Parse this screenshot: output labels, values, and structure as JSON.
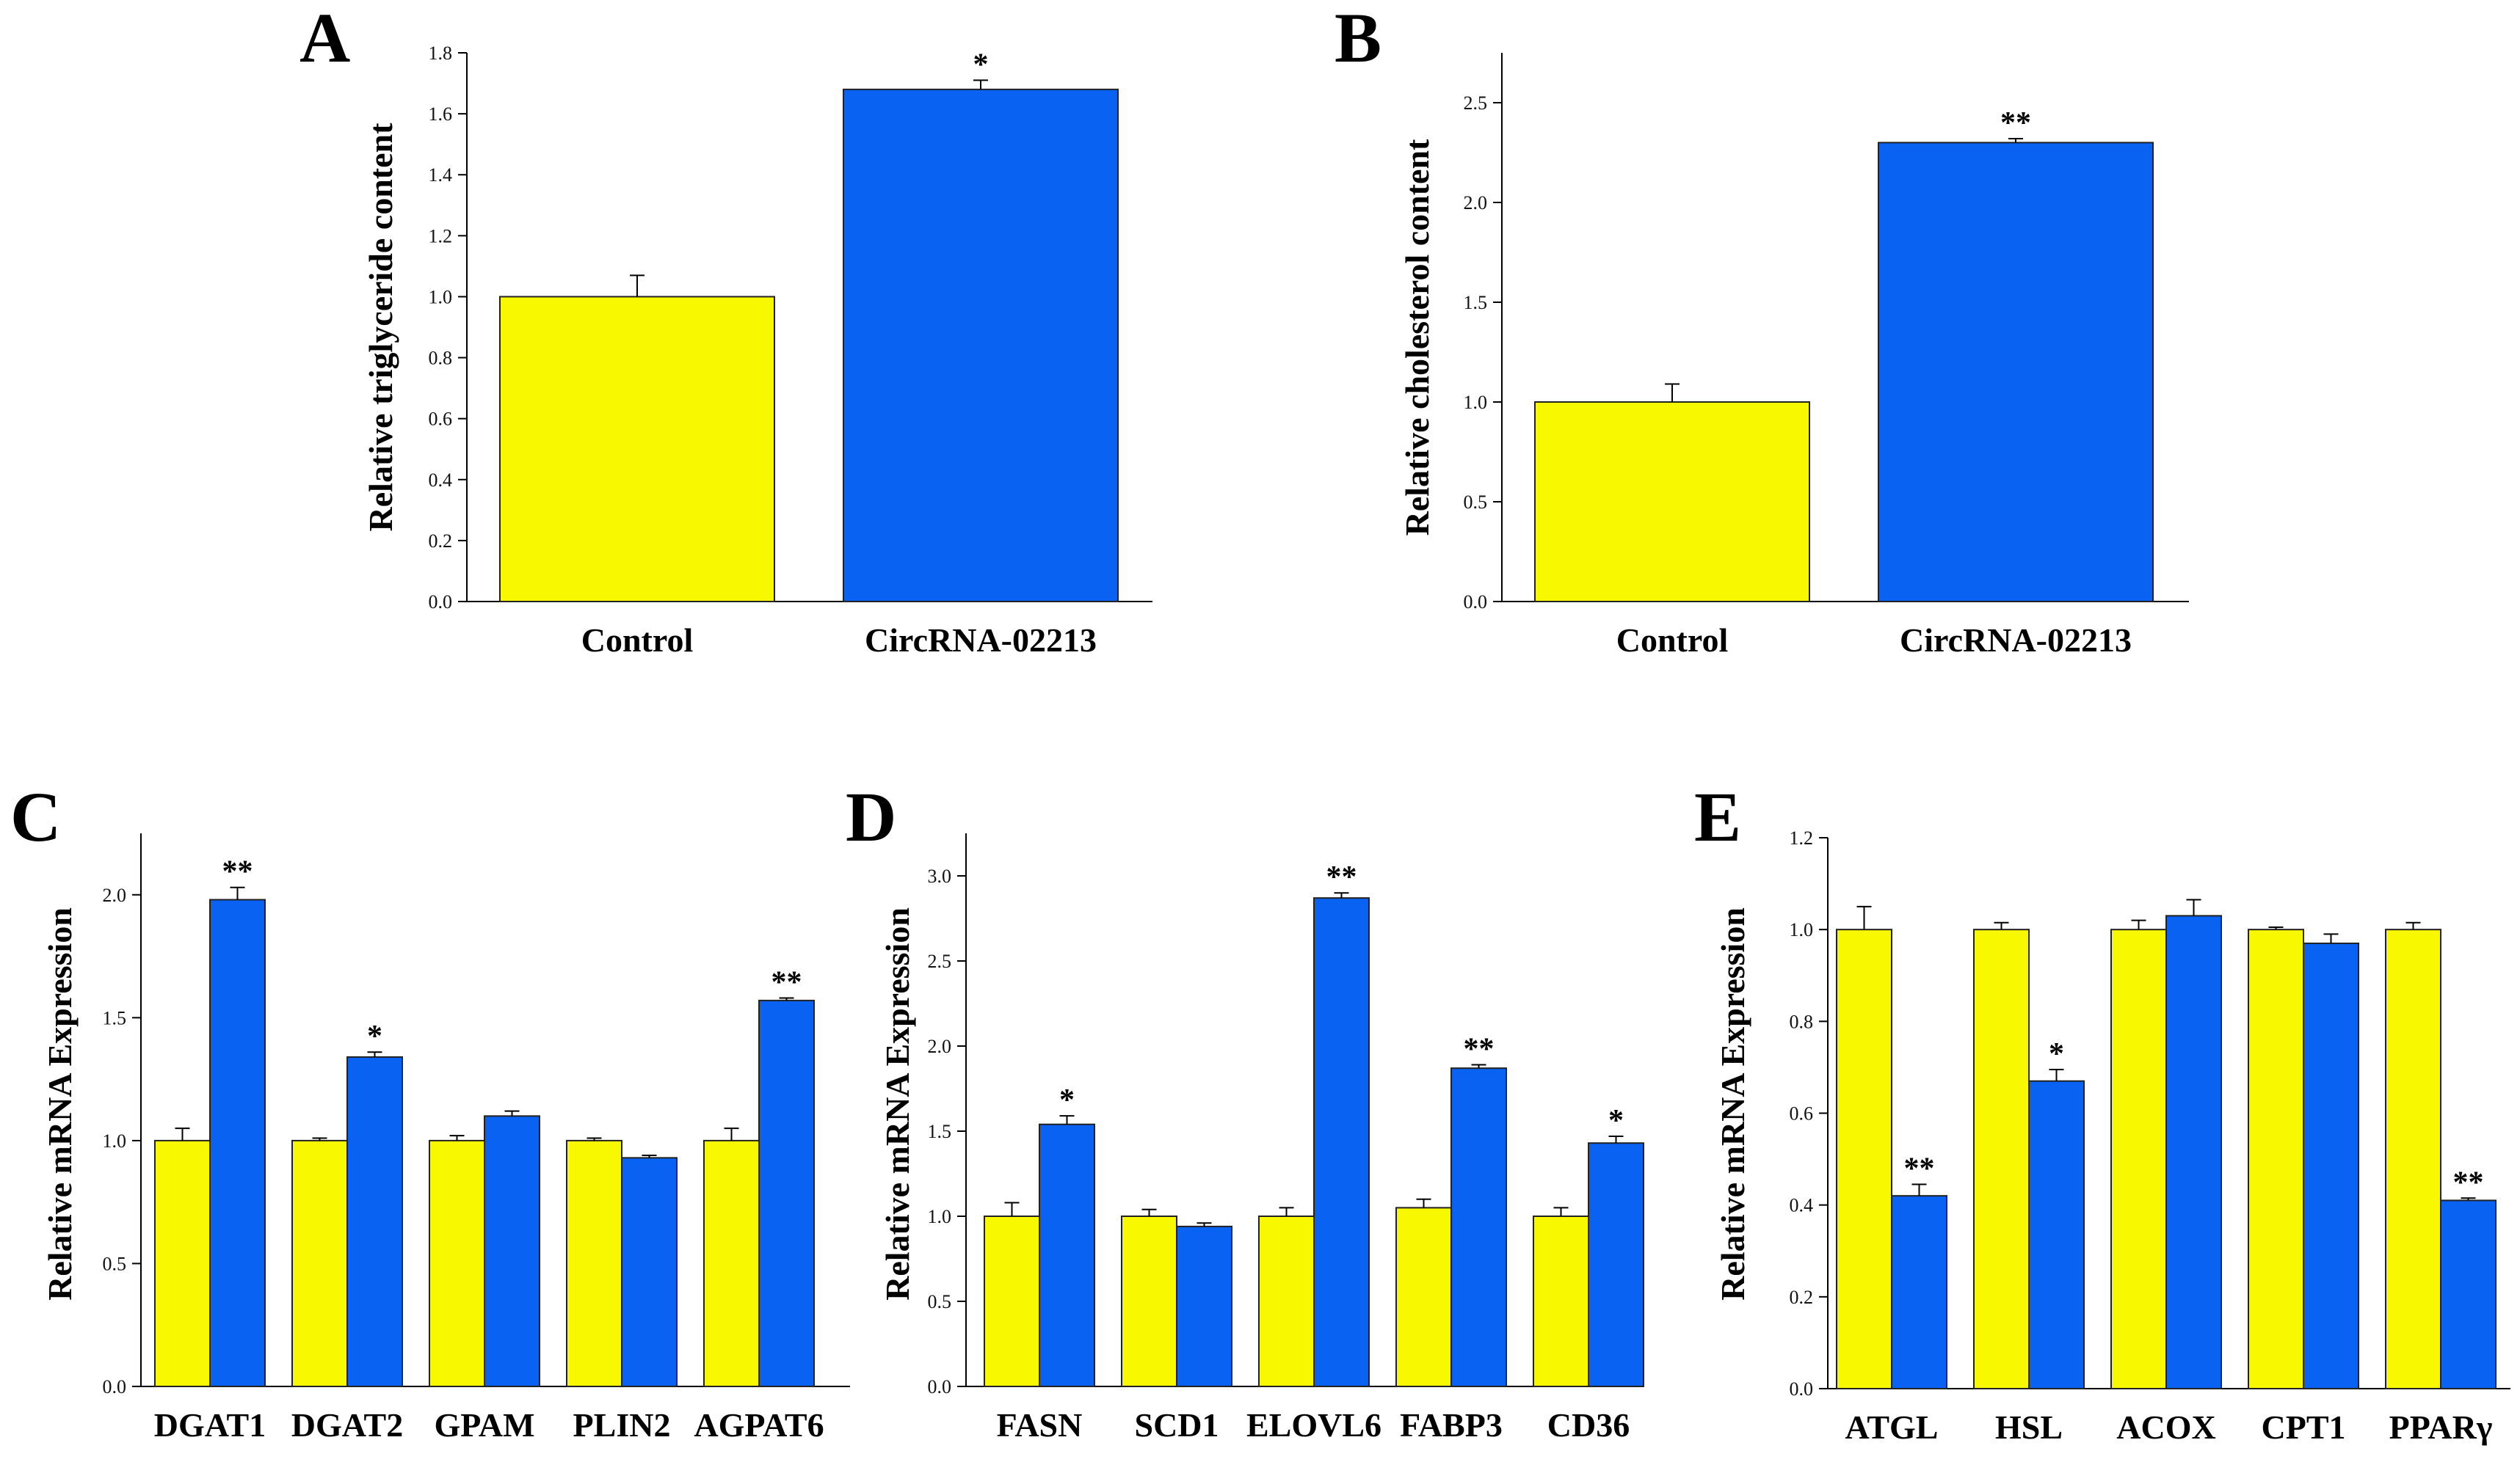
{
  "colors": {
    "control": "#f8f800",
    "treatment": "#0a62f2",
    "edge": "#222222"
  },
  "chart_data": [
    {
      "panel": "A",
      "type": "bar",
      "ylabel": "Relative triglyceride content",
      "categories": [
        "Control",
        "CircRNA-02213"
      ],
      "values": [
        1.0,
        1.68
      ],
      "errors": [
        0.07,
        0.03
      ],
      "significance": [
        "",
        "*"
      ],
      "ylim": [
        0,
        1.8
      ],
      "ytick_step": 0.2,
      "ytick_decimals": 1
    },
    {
      "panel": "B",
      "type": "bar",
      "ylabel": "Relative cholesterol content",
      "categories": [
        "Control",
        "CircRNA-02213"
      ],
      "values": [
        1.0,
        2.3
      ],
      "errors": [
        0.09,
        0.02
      ],
      "significance": [
        "",
        "**"
      ],
      "ylim": [
        0,
        2.75
      ],
      "ytick_step": 0.5,
      "ytick_decimals": 1
    },
    {
      "panel": "C",
      "type": "grouped-bar",
      "ylabel": "Relative mRNA Expression",
      "categories": [
        "DGAT1",
        "DGAT2",
        "GPAM",
        "PLIN2",
        "AGPAT6"
      ],
      "series": [
        {
          "name": "Control",
          "values": [
            1.0,
            1.0,
            1.0,
            1.0,
            1.0
          ],
          "errors": [
            0.05,
            0.01,
            0.02,
            0.01,
            0.05
          ],
          "significance": [
            "",
            "",
            "",
            "",
            ""
          ]
        },
        {
          "name": "CircRNA-02213",
          "values": [
            1.98,
            1.34,
            1.1,
            0.93,
            1.57
          ],
          "errors": [
            0.05,
            0.02,
            0.02,
            0.01,
            0.01
          ],
          "significance": [
            "**",
            "*",
            "",
            "",
            "**"
          ]
        }
      ],
      "ylim": [
        0,
        2.25
      ],
      "ytick_step": 0.5,
      "ytick_decimals": 1
    },
    {
      "panel": "D",
      "type": "grouped-bar",
      "ylabel": "Relative mRNA Expression",
      "categories": [
        "FASN",
        "SCD1",
        "ELOVL6",
        "FABP3",
        "CD36"
      ],
      "series": [
        {
          "name": "Control",
          "values": [
            1.0,
            1.0,
            1.0,
            1.05,
            1.0
          ],
          "errors": [
            0.08,
            0.04,
            0.05,
            0.05,
            0.05
          ],
          "significance": [
            "",
            "",
            "",
            "",
            ""
          ]
        },
        {
          "name": "CircRNA-02213",
          "values": [
            1.54,
            0.94,
            2.87,
            1.87,
            1.43
          ],
          "errors": [
            0.05,
            0.02,
            0.03,
            0.02,
            0.04
          ],
          "significance": [
            "*",
            "",
            "**",
            "**",
            "*"
          ]
        }
      ],
      "ylim": [
        0,
        3.25
      ],
      "ytick_step": 0.5,
      "ytick_decimals": 1
    },
    {
      "panel": "E",
      "type": "grouped-bar",
      "ylabel": "Relative mRNA Expression",
      "categories": [
        "ATGL",
        "HSL",
        "ACOX",
        "CPT1",
        "PPARγ"
      ],
      "series": [
        {
          "name": "Control",
          "values": [
            1.0,
            1.0,
            1.0,
            1.0,
            1.0
          ],
          "errors": [
            0.05,
            0.015,
            0.02,
            0.005,
            0.015
          ],
          "significance": [
            "",
            "",
            "",
            "",
            ""
          ]
        },
        {
          "name": "CircRNA-02213",
          "values": [
            0.42,
            0.67,
            1.03,
            0.97,
            0.41
          ],
          "errors": [
            0.025,
            0.025,
            0.035,
            0.02,
            0.005
          ],
          "significance": [
            "**",
            "*",
            "",
            "",
            "**"
          ]
        }
      ],
      "ylim": [
        0,
        1.2
      ],
      "ytick_step": 0.2,
      "ytick_decimals": 1
    }
  ]
}
